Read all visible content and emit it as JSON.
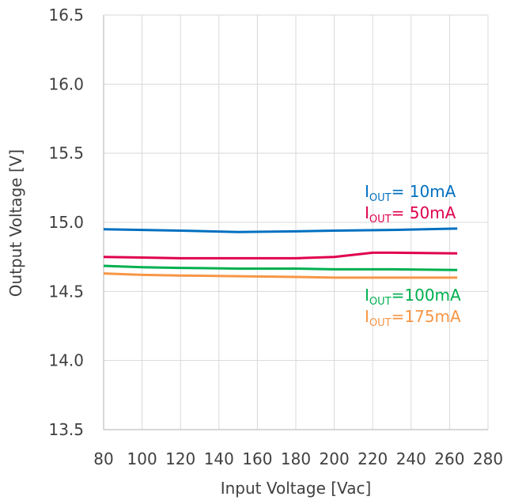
{
  "chart_data": {
    "type": "line",
    "xlabel": "Input Voltage [Vac]",
    "ylabel": "Output Voltage [V]",
    "xlim": [
      80,
      280
    ],
    "ylim": [
      13.5,
      16.5
    ],
    "xticks": [
      80,
      100,
      120,
      140,
      160,
      180,
      200,
      220,
      240,
      260,
      280
    ],
    "yticks": [
      13.5,
      14.0,
      14.5,
      15.0,
      15.5,
      16.0,
      16.5
    ],
    "ytick_labels": [
      "13.5",
      "14.0",
      "14.5",
      "15.0",
      "15.5",
      "16.0",
      "16.5"
    ],
    "grid": true,
    "series": [
      {
        "name": "I_OUT= 10mA",
        "label_main": "I",
        "label_sub": "OUT",
        "label_rest": "= 10mA",
        "color": "#0070C0",
        "x": [
          80,
          100,
          120,
          150,
          180,
          200,
          230,
          264
        ],
        "y": [
          14.95,
          14.945,
          14.94,
          14.93,
          14.935,
          14.94,
          14.945,
          14.955
        ]
      },
      {
        "name": "I_OUT= 50mA",
        "label_main": "I",
        "label_sub": "OUT",
        "label_rest": "= 50mA",
        "color": "#E0004D",
        "x": [
          80,
          100,
          120,
          150,
          180,
          200,
          220,
          230,
          264
        ],
        "y": [
          14.75,
          14.745,
          14.74,
          14.74,
          14.74,
          14.75,
          14.78,
          14.78,
          14.775
        ]
      },
      {
        "name": "I_OUT=100mA",
        "label_main": "I",
        "label_sub": "OUT",
        "label_rest": "=100mA",
        "color": "#00B050",
        "x": [
          80,
          100,
          120,
          150,
          180,
          200,
          230,
          264
        ],
        "y": [
          14.685,
          14.675,
          14.67,
          14.665,
          14.665,
          14.66,
          14.66,
          14.655
        ]
      },
      {
        "name": "I_OUT=175mA",
        "label_main": "I",
        "label_sub": "OUT",
        "label_rest": "=175mA",
        "color": "#F79646",
        "x": [
          80,
          100,
          120,
          150,
          180,
          200,
          230,
          264
        ],
        "y": [
          14.63,
          14.62,
          14.615,
          14.61,
          14.605,
          14.6,
          14.6,
          14.6
        ]
      }
    ]
  }
}
